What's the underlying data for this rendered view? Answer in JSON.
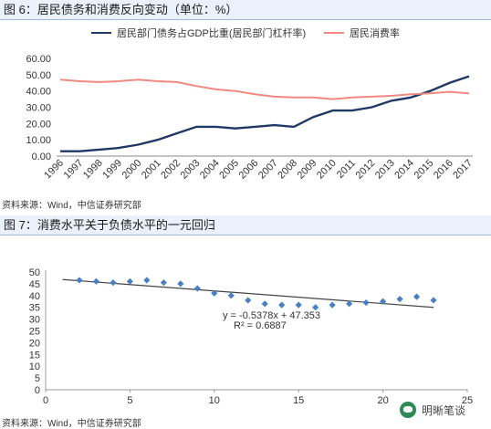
{
  "figure1": {
    "title": "图 6：居民债务和消费反向变动（单位：%）",
    "source": "资料来源：Wind，中信证券研究部"
  },
  "figure2": {
    "title": "图 7：消费水平关于负债水平的一元回归",
    "source": "资料来源：Wind，中信证券研究部",
    "equation": "y = -0.5378x + 47.353",
    "r2": "R² = 0.6887"
  },
  "watermark": {
    "text": "明晰笔谈"
  },
  "chart_data": [
    {
      "type": "line",
      "title": "",
      "x": [
        "1996",
        "1997",
        "1998",
        "1999",
        "2000",
        "2001",
        "2002",
        "2003",
        "2004",
        "2005",
        "2006",
        "2007",
        "2008",
        "2009",
        "2010",
        "2011",
        "2012",
        "2013",
        "2014",
        "2015",
        "2016",
        "2017"
      ],
      "series": [
        {
          "name": "居民部门债务占GDP比重(居民部门杠杆率)",
          "color": "#1f3864",
          "values": [
            3.0,
            3.0,
            4.0,
            5.0,
            7.0,
            10.0,
            14.0,
            18.0,
            18.0,
            17.0,
            18.0,
            19.0,
            18.0,
            24.0,
            28.0,
            28.0,
            30.0,
            34.0,
            36.0,
            40.0,
            45.0,
            49.0
          ]
        },
        {
          "name": "居民消费率",
          "color": "#f08a80",
          "values": [
            47.0,
            46.0,
            45.5,
            46.0,
            47.0,
            46.0,
            45.5,
            43.0,
            41.0,
            40.0,
            38.0,
            36.5,
            36.0,
            36.0,
            35.0,
            36.0,
            36.5,
            37.0,
            38.0,
            38.5,
            39.5,
            38.5
          ]
        }
      ],
      "yticks": [
        "0.00",
        "10.00",
        "20.00",
        "30.00",
        "40.00",
        "50.00",
        "60.00"
      ],
      "ylim": [
        0,
        60
      ],
      "legend": "top",
      "grid": false
    },
    {
      "type": "scatter",
      "title": "",
      "points": [
        [
          2,
          46.5
        ],
        [
          3,
          46
        ],
        [
          4,
          45.5
        ],
        [
          5,
          46
        ],
        [
          6,
          46.5
        ],
        [
          7,
          45.5
        ],
        [
          8,
          45
        ],
        [
          9,
          43
        ],
        [
          10,
          41
        ],
        [
          11,
          40
        ],
        [
          12,
          38
        ],
        [
          13,
          36.5
        ],
        [
          14,
          36
        ],
        [
          15,
          36
        ],
        [
          16,
          35
        ],
        [
          17,
          36
        ],
        [
          18,
          36.5
        ],
        [
          19,
          37
        ],
        [
          20,
          37.5
        ],
        [
          21,
          38.5
        ],
        [
          22,
          39.5
        ],
        [
          23,
          38
        ]
      ],
      "trendline": {
        "slope": -0.5378,
        "intercept": 47.353,
        "x_range": [
          1,
          23
        ]
      },
      "xticks": [
        0,
        5,
        10,
        15,
        20,
        25
      ],
      "yticks": [
        0,
        5,
        10,
        15,
        20,
        25,
        30,
        35,
        40,
        45,
        50
      ],
      "xlim": [
        0,
        25
      ],
      "ylim": [
        0,
        50
      ],
      "marker_color": "#4a7fc1",
      "grid": false
    }
  ]
}
